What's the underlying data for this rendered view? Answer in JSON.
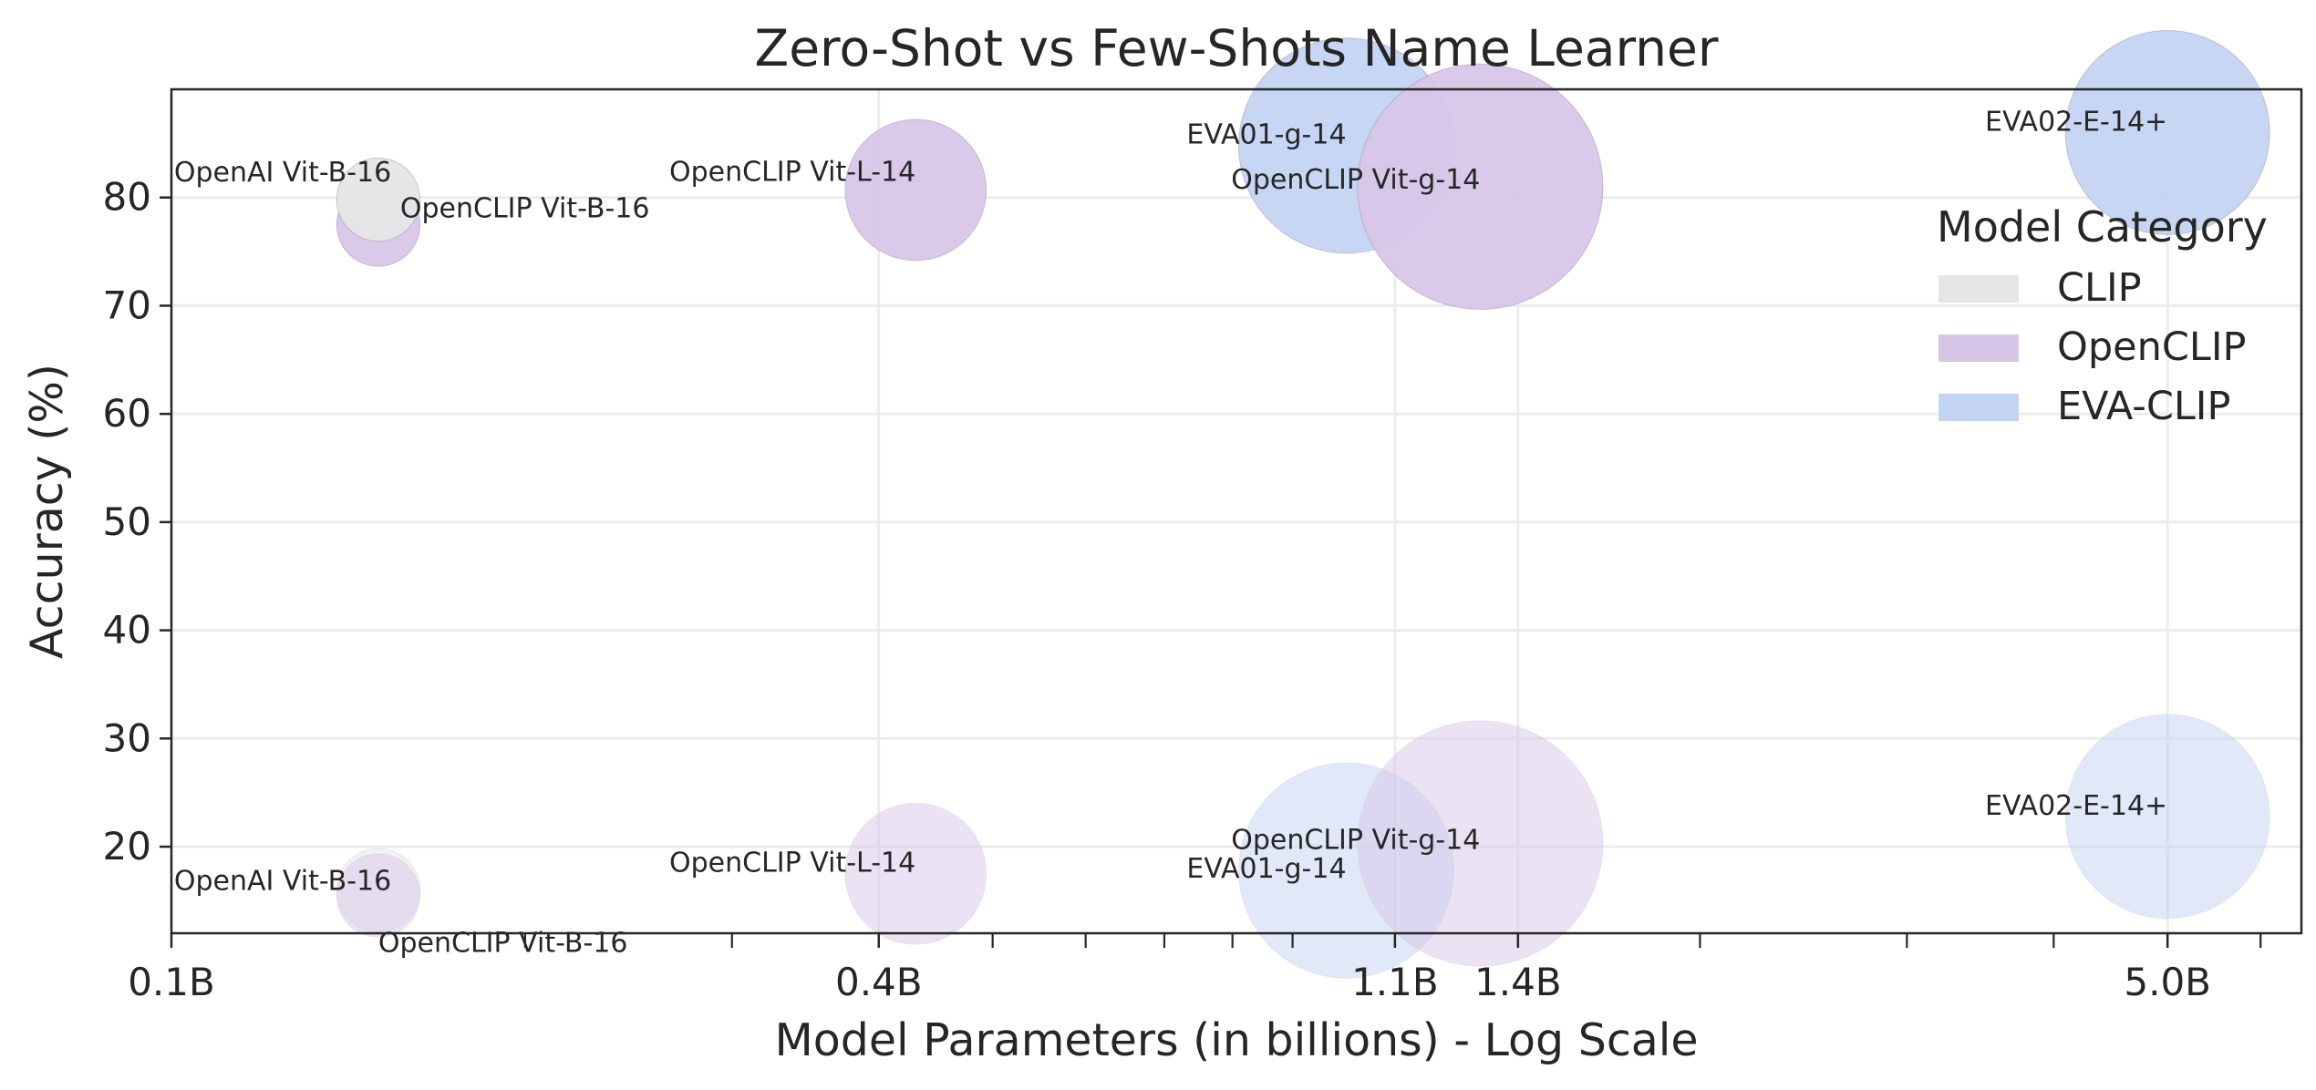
{
  "chart_data": {
    "type": "scatter",
    "subtype": "bubble",
    "title": "Zero-Shot vs Few-Shots Name Learner",
    "xlabel": "Model Parameters (in billions) - Log Scale",
    "ylabel": "Accuracy (%)",
    "xscale": "log",
    "xlim": [
      0.1,
      6.5
    ],
    "ylim": [
      12,
      90
    ],
    "grid": true,
    "x_ticks": [
      {
        "value": 0.1,
        "label": "0.1B"
      },
      {
        "value": 0.4,
        "label": "0.4B"
      },
      {
        "value": 1.1,
        "label": "1.1B"
      },
      {
        "value": 1.4,
        "label": "1.4B"
      },
      {
        "value": 5.0,
        "label": "5.0B"
      }
    ],
    "x_minor_ticks": [
      0.2,
      0.3,
      0.5,
      0.6,
      0.7,
      0.8,
      0.9,
      2,
      3,
      4,
      6
    ],
    "y_ticks": [
      20,
      30,
      40,
      50,
      60,
      70,
      80
    ],
    "legend": {
      "title": "Model Category",
      "position": "right",
      "entries": [
        {
          "label": "CLIP",
          "color": "#e6e6e6"
        },
        {
          "label": "OpenCLIP",
          "color": "#d8c6e8"
        },
        {
          "label": "EVA-CLIP",
          "color": "#c3d4f2"
        }
      ]
    },
    "colors": {
      "CLIP": "#e6e6e6",
      "OpenCLIP": "#d8c6e8",
      "EVA-CLIP": "#c3d4f2"
    },
    "series": [
      {
        "name": "Zero-Shot",
        "points": [
          {
            "model": "OpenCLIP Vit-B-16",
            "category": "OpenCLIP",
            "params": 0.15,
            "accuracy": 77.5,
            "size": 0.15
          },
          {
            "model": "OpenAI Vit-B-16",
            "category": "CLIP",
            "params": 0.15,
            "accuracy": 79.8,
            "size": 0.15
          },
          {
            "model": "OpenCLIP Vit-L-14",
            "category": "OpenCLIP",
            "params": 0.43,
            "accuracy": 80.7,
            "size": 0.43
          },
          {
            "model": "EVA01-g-14",
            "category": "EVA-CLIP",
            "params": 1.0,
            "accuracy": 84.8,
            "size": 1.0
          },
          {
            "model": "OpenCLIP Vit-g-14",
            "category": "OpenCLIP",
            "params": 1.3,
            "accuracy": 81.0,
            "size": 1.3
          },
          {
            "model": "EVA02-E-14+",
            "category": "EVA-CLIP",
            "params": 5.0,
            "accuracy": 86.0,
            "size": 0.9
          }
        ]
      },
      {
        "name": "Few-Shots",
        "points": [
          {
            "model": "OpenAI Vit-B-16",
            "category": "CLIP",
            "params": 0.15,
            "accuracy": 16.0,
            "size": 0.15
          },
          {
            "model": "OpenCLIP Vit-B-16",
            "category": "OpenCLIP",
            "params": 0.15,
            "accuracy": 15.5,
            "size": 0.15
          },
          {
            "model": "OpenCLIP Vit-L-14",
            "category": "OpenCLIP",
            "params": 0.43,
            "accuracy": 17.5,
            "size": 0.43
          },
          {
            "model": "EVA01-g-14",
            "category": "EVA-CLIP",
            "params": 1.0,
            "accuracy": 17.8,
            "size": 1.0
          },
          {
            "model": "OpenCLIP Vit-g-14",
            "category": "OpenCLIP",
            "params": 1.3,
            "accuracy": 20.3,
            "size": 1.3
          },
          {
            "model": "EVA02-E-14+",
            "category": "EVA-CLIP",
            "params": 5.0,
            "accuracy": 22.8,
            "size": 0.9
          }
        ]
      }
    ]
  }
}
